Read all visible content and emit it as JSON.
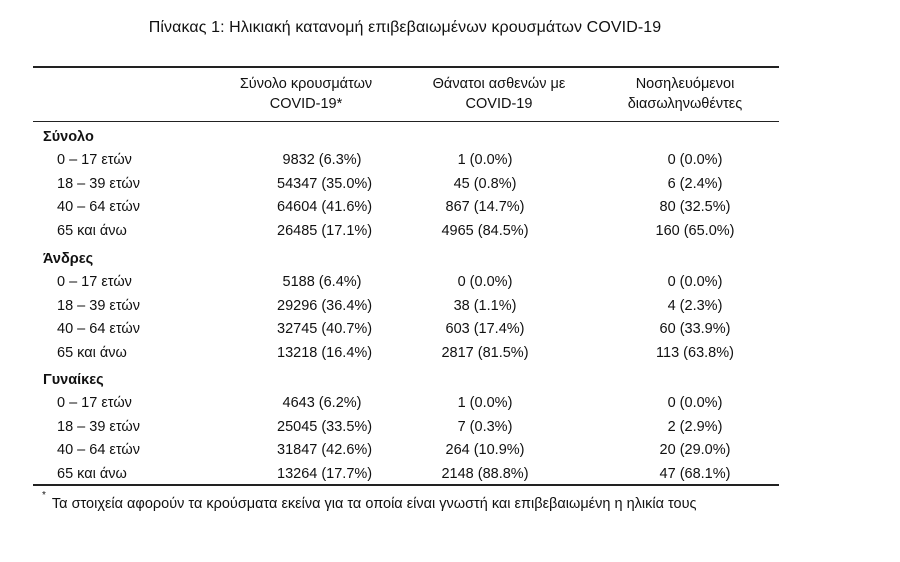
{
  "title": "Πίνακας 1: Ηλικιακή κατανομή επιβεβαιωμένων κρουσμάτων COVID-19",
  "headers": {
    "col1_line1": "Σύνολο κρουσμάτων",
    "col1_line2": "COVID-19*",
    "col2_line1": "Θάνατοι ασθενών με",
    "col2_line2": "COVID-19",
    "col3_line1": "Νοσηλευόμενοι",
    "col3_line2": "διασωληνωθέντες"
  },
  "groups": [
    {
      "label": "Σύνολο",
      "rows": [
        {
          "age": "0 – 17 ετών",
          "cases": "9832 (6.3%)",
          "deaths": "1 (0.0%)",
          "icu": "0 (0.0%)"
        },
        {
          "age": "18 – 39 ετών",
          "cases": "54347 (35.0%)",
          "deaths": "45 (0.8%)",
          "icu": "6 (2.4%)"
        },
        {
          "age": "40 – 64 ετών",
          "cases": "64604 (41.6%)",
          "deaths": "867 (14.7%)",
          "icu": "80 (32.5%)"
        },
        {
          "age": "65 και άνω",
          "cases": "26485 (17.1%)",
          "deaths": "4965 (84.5%)",
          "icu": "160 (65.0%)"
        }
      ]
    },
    {
      "label": "Άνδρες",
      "rows": [
        {
          "age": "0 – 17 ετών",
          "cases": "5188 (6.4%)",
          "deaths": "0 (0.0%)",
          "icu": "0 (0.0%)"
        },
        {
          "age": "18 – 39 ετών",
          "cases": "29296 (36.4%)",
          "deaths": "38 (1.1%)",
          "icu": "4 (2.3%)"
        },
        {
          "age": "40 – 64 ετών",
          "cases": "32745 (40.7%)",
          "deaths": "603 (17.4%)",
          "icu": "60 (33.9%)"
        },
        {
          "age": "65 και άνω",
          "cases": "13218 (16.4%)",
          "deaths": "2817 (81.5%)",
          "icu": "113 (63.8%)"
        }
      ]
    },
    {
      "label": "Γυναίκες",
      "rows": [
        {
          "age": "0 – 17 ετών",
          "cases": "4643 (6.2%)",
          "deaths": "1 (0.0%)",
          "icu": "0 (0.0%)"
        },
        {
          "age": "18 – 39 ετών",
          "cases": "25045 (33.5%)",
          "deaths": "7 (0.3%)",
          "icu": "2 (2.9%)"
        },
        {
          "age": "40 – 64 ετών",
          "cases": "31847 (42.6%)",
          "deaths": "264 (10.9%)",
          "icu": "20 (29.0%)"
        },
        {
          "age": "65 και άνω",
          "cases": "13264 (17.7%)",
          "deaths": "2148 (88.8%)",
          "icu": "47 (68.1%)"
        }
      ]
    }
  ],
  "footnote": {
    "marker": "*",
    "text": "Τα στοιχεία αφορούν τα κρούσματα εκείνα για τα οποία είναι γνωστή και επιβεβαιωμένη η ηλικία τους"
  }
}
